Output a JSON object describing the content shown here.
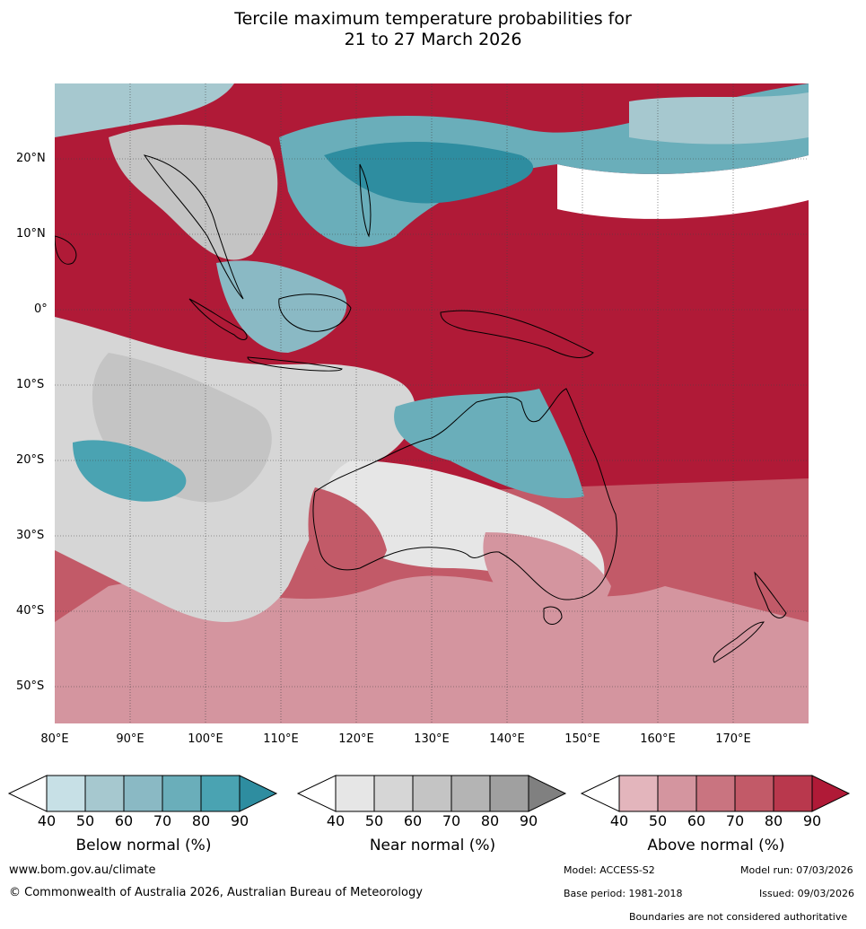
{
  "title_line1": "Tercile maximum temperature probabilities for",
  "title_line2": "21 to 27 March 2026",
  "map": {
    "lon_range": [
      80,
      180
    ],
    "lat_range": [
      -55,
      30
    ],
    "lat_labels": [
      "20°N",
      "10°N",
      "0°",
      "10°S",
      "20°S",
      "30°S",
      "40°S",
      "50°S"
    ],
    "lon_labels": [
      "80°E",
      "90°E",
      "100°E",
      "110°E",
      "120°E",
      "130°E",
      "140°E",
      "150°E",
      "160°E",
      "170°E"
    ]
  },
  "colorbars": {
    "ticks": [
      "40",
      "50",
      "60",
      "70",
      "80",
      "90"
    ],
    "below": {
      "label": "Below normal (%)",
      "colors": [
        "#c7e0e6",
        "#a6c8cf",
        "#8ab9c4",
        "#6aaeba",
        "#4aa3b2",
        "#2e8da0"
      ]
    },
    "near": {
      "label": "Near normal (%)",
      "colors": [
        "#e6e6e6",
        "#d6d6d6",
        "#c4c4c4",
        "#b4b4b4",
        "#a0a0a0",
        "#808080"
      ]
    },
    "above": {
      "label": "Above normal (%)",
      "colors": [
        "#e3b5bc",
        "#d4959f",
        "#c97480",
        "#c25a68",
        "#b9384d",
        "#b01a37"
      ]
    }
  },
  "footer": {
    "website": "www.bom.gov.au/climate",
    "copyright": "© Commonwealth of Australia 2026, Australian Bureau of Meteorology",
    "model": "Model: ACCESS-S2",
    "model_run": "Model run: 07/03/2026",
    "base_period": "Base period: 1981-2018",
    "issued": "Issued: 09/03/2026",
    "disclaimer": "Boundaries are not considered authoritative"
  }
}
